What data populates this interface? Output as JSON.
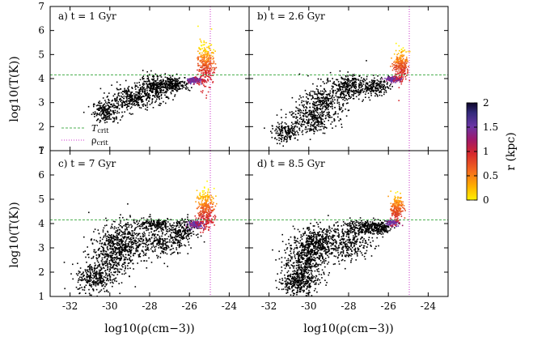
{
  "figure": {
    "xlabel": "log10(ρ(cm−3))",
    "ylabel": "log10(T(K))",
    "colorbar_label": "r (kpc)"
  },
  "legend": {
    "t_crit": "T",
    "t_crit_sub": "crit",
    "rho_crit": "ρ",
    "rho_crit_sub": "crit"
  },
  "colors": {
    "gas": "#000000",
    "t_crit_line": "#4caf50",
    "rho_crit_line": "#cc33cc",
    "colormap": [
      "#fff200",
      "#ffb000",
      "#f46a1e",
      "#d6272c",
      "#a0196a",
      "#6a35a6",
      "#332a7a",
      "#0d0628"
    ]
  },
  "chart_data": [
    {
      "type": "scatter",
      "title": "a) t = 1 Gyr",
      "xlim": [
        -33,
        -23
      ],
      "ylim": [
        1,
        7
      ],
      "xticks": [
        "-32",
        "-30",
        "-28",
        "-26",
        "-24"
      ],
      "yticks": [
        "1",
        "2",
        "3",
        "4",
        "5",
        "6",
        "7"
      ],
      "log_T_crit": 4.15,
      "log_rho_crit": -24.95,
      "legend_position": "bottom-left",
      "blobs": [
        {
          "cx": -30.2,
          "cy": 2.65,
          "sx": 0.35,
          "sy": 0.22,
          "n": 200,
          "c": "cold"
        },
        {
          "cx": -29.0,
          "cy": 3.2,
          "sx": 0.55,
          "sy": 0.25,
          "n": 320,
          "c": "cold"
        },
        {
          "cx": -27.7,
          "cy": 3.65,
          "sx": 0.45,
          "sy": 0.25,
          "n": 320,
          "c": "cold"
        },
        {
          "cx": -26.8,
          "cy": 3.8,
          "sx": 0.4,
          "sy": 0.15,
          "n": 200,
          "c": "cold"
        },
        {
          "cx": -25.8,
          "cy": 3.95,
          "sx": 0.2,
          "sy": 0.06,
          "n": 140,
          "c": "mid"
        },
        {
          "cx": -25.2,
          "cy": 4.6,
          "sx": 0.2,
          "sy": 0.45,
          "n": 320,
          "c": "hot"
        }
      ]
    },
    {
      "type": "scatter",
      "title": "b) t = 2.6 Gyr",
      "xlim": [
        -33,
        -23
      ],
      "ylim": [
        1,
        7
      ],
      "xticks": [
        "-32",
        "-30",
        "-28",
        "-26",
        "-24"
      ],
      "yticks": [
        "1",
        "2",
        "3",
        "4",
        "5",
        "6",
        "7"
      ],
      "log_T_crit": 4.15,
      "log_rho_crit": -24.95,
      "blobs": [
        {
          "cx": -31.2,
          "cy": 1.75,
          "sx": 0.35,
          "sy": 0.18,
          "n": 160,
          "c": "cold"
        },
        {
          "cx": -30.0,
          "cy": 2.35,
          "sx": 0.6,
          "sy": 0.3,
          "n": 300,
          "c": "cold"
        },
        {
          "cx": -29.2,
          "cy": 3.1,
          "sx": 0.55,
          "sy": 0.35,
          "n": 320,
          "c": "cold"
        },
        {
          "cx": -28.0,
          "cy": 3.7,
          "sx": 0.45,
          "sy": 0.25,
          "n": 260,
          "c": "cold"
        },
        {
          "cx": -26.7,
          "cy": 3.7,
          "sx": 0.35,
          "sy": 0.18,
          "n": 180,
          "c": "cold"
        },
        {
          "cx": -25.8,
          "cy": 4.0,
          "sx": 0.18,
          "sy": 0.06,
          "n": 140,
          "c": "mid"
        },
        {
          "cx": -25.4,
          "cy": 4.55,
          "sx": 0.18,
          "sy": 0.3,
          "n": 260,
          "c": "hot"
        }
      ]
    },
    {
      "type": "scatter",
      "title": "c) t = 7 Gyr",
      "xlim": [
        -33,
        -23
      ],
      "ylim": [
        1,
        7
      ],
      "xticks": [
        "-32",
        "-30",
        "-28",
        "-26",
        "-24"
      ],
      "yticks": [
        "1",
        "2",
        "3",
        "4",
        "5",
        "6",
        "7"
      ],
      "log_T_crit": 4.15,
      "log_rho_crit": -24.95,
      "blobs": [
        {
          "cx": -30.8,
          "cy": 1.8,
          "sx": 0.45,
          "sy": 0.3,
          "n": 260,
          "c": "cold"
        },
        {
          "cx": -30.0,
          "cy": 2.7,
          "sx": 0.55,
          "sy": 0.5,
          "n": 420,
          "c": "cold"
        },
        {
          "cx": -29.3,
          "cy": 3.4,
          "sx": 0.45,
          "sy": 0.4,
          "n": 320,
          "c": "cold"
        },
        {
          "cx": -27.5,
          "cy": 3.2,
          "sx": 0.6,
          "sy": 0.3,
          "n": 260,
          "c": "cold"
        },
        {
          "cx": -27.8,
          "cy": 4.0,
          "sx": 0.5,
          "sy": 0.12,
          "n": 180,
          "c": "cold"
        },
        {
          "cx": -26.4,
          "cy": 3.7,
          "sx": 0.35,
          "sy": 0.25,
          "n": 200,
          "c": "cold"
        },
        {
          "cx": -25.7,
          "cy": 4.0,
          "sx": 0.18,
          "sy": 0.08,
          "n": 160,
          "c": "mid"
        },
        {
          "cx": -25.2,
          "cy": 4.6,
          "sx": 0.2,
          "sy": 0.4,
          "n": 320,
          "c": "hot"
        }
      ]
    },
    {
      "type": "scatter",
      "title": "d) t = 8.5 Gyr",
      "xlim": [
        -33,
        -23
      ],
      "ylim": [
        1,
        7
      ],
      "xticks": [
        "-32",
        "-30",
        "-28",
        "-26",
        "-24"
      ],
      "yticks": [
        "1",
        "2",
        "3",
        "4",
        "5",
        "6",
        "7"
      ],
      "log_T_crit": 4.15,
      "log_rho_crit": -24.95,
      "blobs": [
        {
          "cx": -30.6,
          "cy": 1.6,
          "sx": 0.45,
          "sy": 0.25,
          "n": 300,
          "c": "cold"
        },
        {
          "cx": -30.2,
          "cy": 2.5,
          "sx": 0.55,
          "sy": 0.5,
          "n": 460,
          "c": "cold"
        },
        {
          "cx": -29.6,
          "cy": 3.2,
          "sx": 0.45,
          "sy": 0.35,
          "n": 360,
          "c": "cold"
        },
        {
          "cx": -28.0,
          "cy": 3.2,
          "sx": 0.6,
          "sy": 0.35,
          "n": 300,
          "c": "cold"
        },
        {
          "cx": -27.4,
          "cy": 3.9,
          "sx": 0.5,
          "sy": 0.15,
          "n": 200,
          "c": "cold"
        },
        {
          "cx": -26.5,
          "cy": 3.85,
          "sx": 0.3,
          "sy": 0.15,
          "n": 160,
          "c": "cold"
        },
        {
          "cx": -25.8,
          "cy": 4.05,
          "sx": 0.15,
          "sy": 0.06,
          "n": 120,
          "c": "mid"
        },
        {
          "cx": -25.6,
          "cy": 4.65,
          "sx": 0.15,
          "sy": 0.25,
          "n": 220,
          "c": "hot"
        }
      ]
    }
  ],
  "colorbar": {
    "min": 0,
    "max": 2,
    "ticks": [
      "0",
      "0.5",
      "1",
      "1.5",
      "2"
    ]
  }
}
